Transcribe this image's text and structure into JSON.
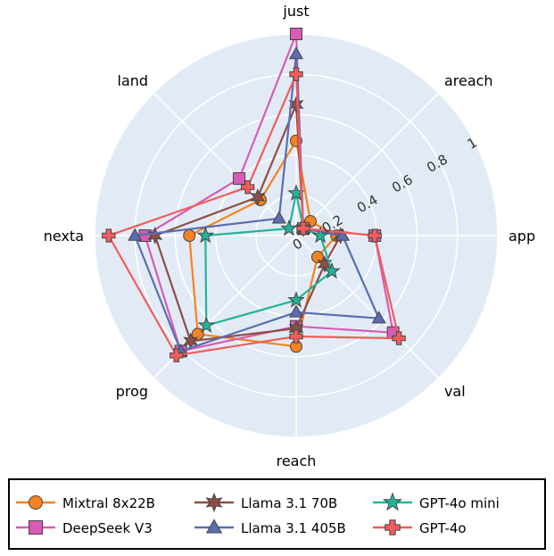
{
  "chart_data": {
    "type": "radar",
    "axes": [
      "just",
      "areach",
      "app",
      "val",
      "reach",
      "prog",
      "nexta",
      "land"
    ],
    "radial_range": [
      0,
      1
    ],
    "radial_ticks": [
      "0",
      "0.2",
      "0.4",
      "0.6",
      "0.8",
      "1"
    ],
    "radial_tick_values": [
      0,
      0.2,
      0.4,
      0.6,
      0.8,
      1
    ],
    "grid": true,
    "legend_position": "bottom",
    "series": [
      {
        "name": "Mixtral 8x22B",
        "color": "#F58220",
        "marker": "circle",
        "values": [
          0.47,
          0.1,
          0.2,
          0.15,
          0.55,
          0.69,
          0.53,
          0.25
        ]
      },
      {
        "name": "DeepSeek V3",
        "color": "#D65CB4",
        "marker": "square",
        "values": [
          1.0,
          0.05,
          0.39,
          0.68,
          0.45,
          0.81,
          0.75,
          0.4
        ]
      },
      {
        "name": "Llama 3.1 70B",
        "color": "#8E4E44",
        "marker": "star6",
        "values": [
          0.65,
          0.05,
          0.22,
          0.2,
          0.46,
          0.74,
          0.7,
          0.27
        ]
      },
      {
        "name": "Llama 3.1 405B",
        "color": "#5B6DB0",
        "marker": "triangle",
        "values": [
          0.9,
          0.05,
          0.23,
          0.58,
          0.38,
          0.81,
          0.8,
          0.12
        ]
      },
      {
        "name": "GPT-4o mini",
        "color": "#23B39B",
        "marker": "star5",
        "values": [
          0.21,
          0.05,
          0.12,
          0.25,
          0.32,
          0.63,
          0.45,
          0.05
        ]
      },
      {
        "name": "GPT-4o",
        "color": "#F25C5C",
        "marker": "cross",
        "values": [
          0.8,
          0.05,
          0.39,
          0.72,
          0.5,
          0.84,
          0.93,
          0.34
        ]
      }
    ]
  }
}
